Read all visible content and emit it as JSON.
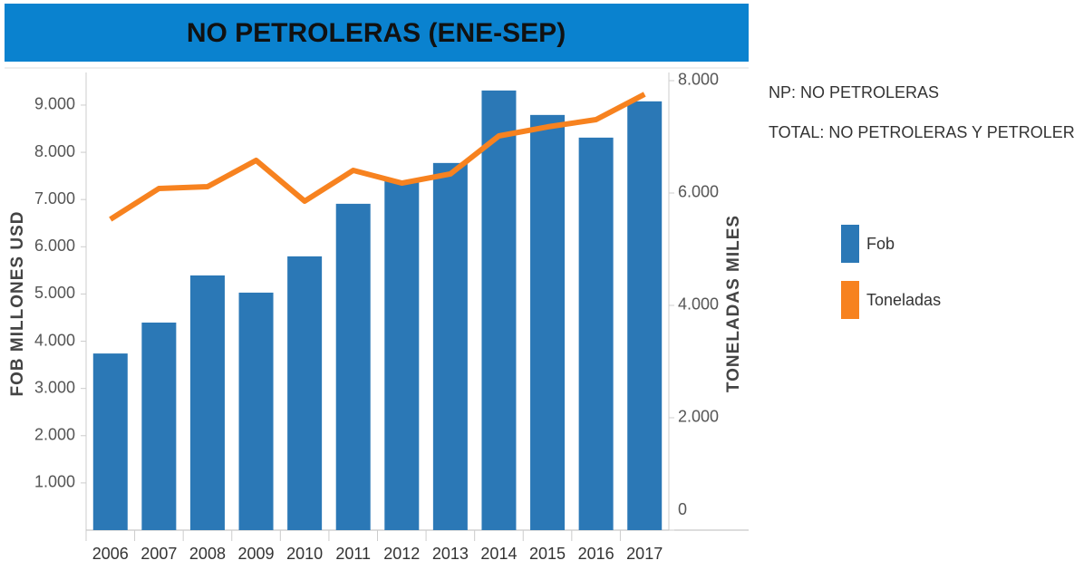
{
  "chart_data": {
    "type": "bar-line",
    "title": "NO PETROLERAS (ENE-SEP)",
    "y_label": "FOB MILLONES USD",
    "y2_label": "TONELADAS MILES",
    "annotations": [
      "NP: NO PETROLERAS",
      "TOTAL: NO PETROLERAS Y PETROLERAS"
    ],
    "categories": [
      "2006",
      "2007",
      "2008",
      "2009",
      "2010",
      "2011",
      "2012",
      "2013",
      "2014",
      "2015",
      "2016",
      "2017"
    ],
    "series": [
      {
        "name": "Fob",
        "type": "bar",
        "axis": "y",
        "color": "#2b78b6",
        "values": [
          3740,
          4395,
          5393,
          5029,
          5797,
          6910,
          7390,
          7774,
          9309,
          8791,
          8311,
          9079
        ]
      },
      {
        "name": "Toneladas",
        "type": "line",
        "axis": "y2",
        "color": "#f7821f",
        "values": [
          5532,
          6081,
          6113,
          6581,
          5855,
          6403,
          6177,
          6339,
          7016,
          7177,
          7306,
          7758
        ]
      }
    ],
    "ylim": [
      0,
      9690
    ],
    "yticks": [
      {
        "value": 1000,
        "label": "1.000"
      },
      {
        "value": 2000,
        "label": "2.000"
      },
      {
        "value": 3000,
        "label": "3.000"
      },
      {
        "value": 4000,
        "label": "4.000"
      },
      {
        "value": 5000,
        "label": "5.000"
      },
      {
        "value": 6000,
        "label": "6.000"
      },
      {
        "value": 7000,
        "label": "7.000"
      },
      {
        "value": 8000,
        "label": "8.000"
      },
      {
        "value": 9000,
        "label": "9.000"
      }
    ],
    "y2lim": [
      0,
      8145
    ],
    "y2ticks": [
      0,
      {
        "value": 2000,
        "label": "2.000"
      },
      {
        "value": 4000,
        "label": "4.000"
      },
      {
        "value": 6000,
        "label": "6.000"
      },
      {
        "value": 8000,
        "label": "8.000"
      }
    ],
    "grid": false
  }
}
